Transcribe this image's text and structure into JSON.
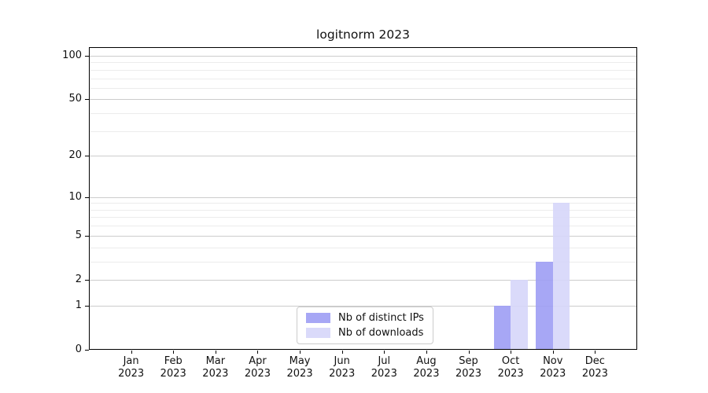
{
  "chart_data": {
    "type": "bar",
    "title": "logitnorm 2023",
    "categories": [
      "Jan",
      "Feb",
      "Mar",
      "Apr",
      "May",
      "Jun",
      "Jul",
      "Aug",
      "Sep",
      "Oct",
      "Nov",
      "Dec"
    ],
    "year_label": "2023",
    "series": [
      {
        "name": "Nb of distinct IPs",
        "color": "#9d9df4",
        "values": [
          0,
          0,
          0,
          0,
          0,
          0,
          0,
          0,
          0,
          1,
          3,
          0
        ]
      },
      {
        "name": "Nb of downloads",
        "color": "#d6d6f9",
        "values": [
          0,
          0,
          0,
          0,
          0,
          0,
          0,
          0,
          0,
          2,
          9,
          0
        ]
      }
    ],
    "yscale": "log1p",
    "ylim": [
      0,
      115
    ],
    "y_major_ticks": [
      0,
      1,
      2,
      5,
      10,
      20,
      50,
      100
    ],
    "y_minor_ticks": [
      3,
      4,
      6,
      7,
      8,
      9,
      30,
      40,
      60,
      70,
      80,
      90
    ],
    "grid": "on",
    "legend_position": "lower center",
    "colors": {
      "grid_major": "#cccccc",
      "grid_minor": "#ececec",
      "axis": "#000000",
      "text": "#111111"
    }
  }
}
